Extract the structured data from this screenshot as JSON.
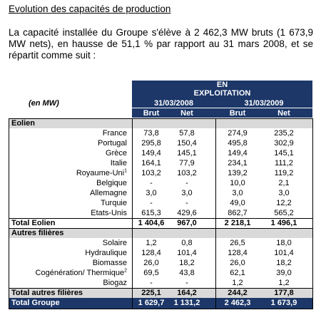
{
  "title": "Evolution des capacités de production",
  "paragraph": "La capacité installée du Groupe s'élève à 2 462,3 MW bruts (1 673,9 MW nets), en hausse de 51,1 % par rapport au 31 mars 2008, et se répartit comme suit :",
  "table": {
    "header": {
      "status": [
        "EN",
        "EXPLOITATION"
      ],
      "unit": "(en MW)",
      "dates": [
        "31/03/2008",
        "31/03/2009"
      ],
      "columns": [
        "Brut",
        "Net",
        "Brut",
        "Net"
      ]
    },
    "sections": [
      {
        "name": "Eolien",
        "rows": [
          {
            "label": "France",
            "values": [
              "73,8",
              "57,8",
              "274,9",
              "235,2"
            ]
          },
          {
            "label": "Portugal",
            "values": [
              "295,8",
              "150,4",
              "495,8",
              "302,9"
            ]
          },
          {
            "label": "Grèce",
            "values": [
              "149,4",
              "145,1",
              "149,4",
              "145,1"
            ]
          },
          {
            "label": "Italie",
            "values": [
              "164,1",
              "77,9",
              "234,1",
              "111,2"
            ]
          },
          {
            "label": "Royaume-Uni",
            "note": "1",
            "values": [
              "103,2",
              "103,2",
              "139,2",
              "119,2"
            ]
          },
          {
            "label": "Belgique",
            "values": [
              "-",
              "-",
              "10,0",
              "2,1"
            ]
          },
          {
            "label": "Allemagne",
            "values": [
              "3,0",
              "3,0",
              "3,0",
              "3,0"
            ]
          },
          {
            "label": "Turquie",
            "values": [
              "-",
              "-",
              "49,0",
              "12,2"
            ]
          },
          {
            "label": "Etats-Unis",
            "values": [
              "615,3",
              "429,6",
              "862,7",
              "565,2"
            ]
          }
        ],
        "total": {
          "label": "Total Eolien",
          "values": [
            "1 404,6",
            "967,0",
            "2 218,1",
            "1 496,1"
          ]
        }
      },
      {
        "name": "Autres filières",
        "rows": [
          {
            "label": "Solaire",
            "values": [
              "1,2",
              "0,8",
              "26,5",
              "18,0"
            ]
          },
          {
            "label": "Hydraulique",
            "values": [
              "128,4",
              "101,4",
              "128,4",
              "101,4"
            ]
          },
          {
            "label": "Biomasse",
            "values": [
              "26,0",
              "18,2",
              "26,0",
              "18,2"
            ]
          },
          {
            "label": "Cogénération/ Thermique",
            "note": "2",
            "values": [
              "69,5",
              "43,8",
              "62,1",
              "39,0"
            ]
          },
          {
            "label": "Biogaz",
            "values": [
              "-",
              "-",
              "1,2",
              "1,2"
            ]
          }
        ],
        "total": {
          "label": "Total autres filières",
          "values": [
            "225,1",
            "164,2",
            "244,2",
            "177,8"
          ]
        }
      }
    ],
    "grand_total": {
      "label": "Total Groupe",
      "values": [
        "1 629,7",
        "1 131,2",
        "2 462,3",
        "1 673,9"
      ]
    }
  }
}
